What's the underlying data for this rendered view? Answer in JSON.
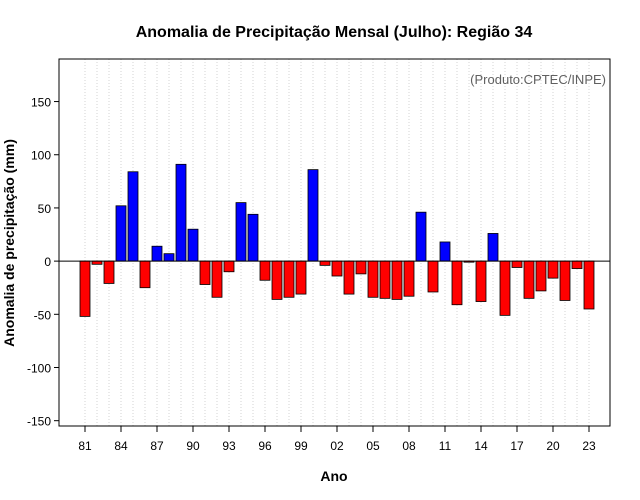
{
  "chart_data": {
    "type": "bar",
    "title": "Anomalia de Precipitação Mensal (Julho): Região 34",
    "xlabel": "Ano",
    "ylabel": "Anomalia de precipitação (mm)",
    "annotation": "(Produto:CPTEC/INPE)",
    "ylim": [
      -155,
      190
    ],
    "yticks": [
      -150,
      -100,
      -50,
      0,
      50,
      100,
      150
    ],
    "xticks": [
      "81",
      "84",
      "87",
      "90",
      "93",
      "96",
      "99",
      "02",
      "05",
      "08",
      "11",
      "14",
      "17",
      "20",
      "23"
    ],
    "x": [
      1981,
      1982,
      1983,
      1984,
      1985,
      1986,
      1987,
      1988,
      1989,
      1990,
      1991,
      1992,
      1993,
      1994,
      1995,
      1996,
      1997,
      1998,
      1999,
      2000,
      2001,
      2002,
      2003,
      2004,
      2005,
      2006,
      2007,
      2008,
      2009,
      2010,
      2011,
      2012,
      2013,
      2014,
      2015,
      2016,
      2017,
      2018,
      2019,
      2020,
      2021,
      2022,
      2023
    ],
    "values": [
      -52,
      -3,
      -21,
      52,
      84,
      -25,
      14,
      7,
      91,
      30,
      -22,
      -34,
      -10,
      55,
      44,
      -18,
      -36,
      -34,
      -31,
      86,
      -4,
      -14,
      -31,
      -12,
      -34,
      -35,
      -36,
      -33,
      46,
      -29,
      18,
      -41,
      -1,
      -38,
      26,
      -51,
      -6,
      -35,
      -28,
      -16,
      -37,
      -7,
      -45
    ],
    "colors": {
      "positive": "#0000ff",
      "negative": "#ff0000"
    },
    "grid": "vertical dotted"
  }
}
